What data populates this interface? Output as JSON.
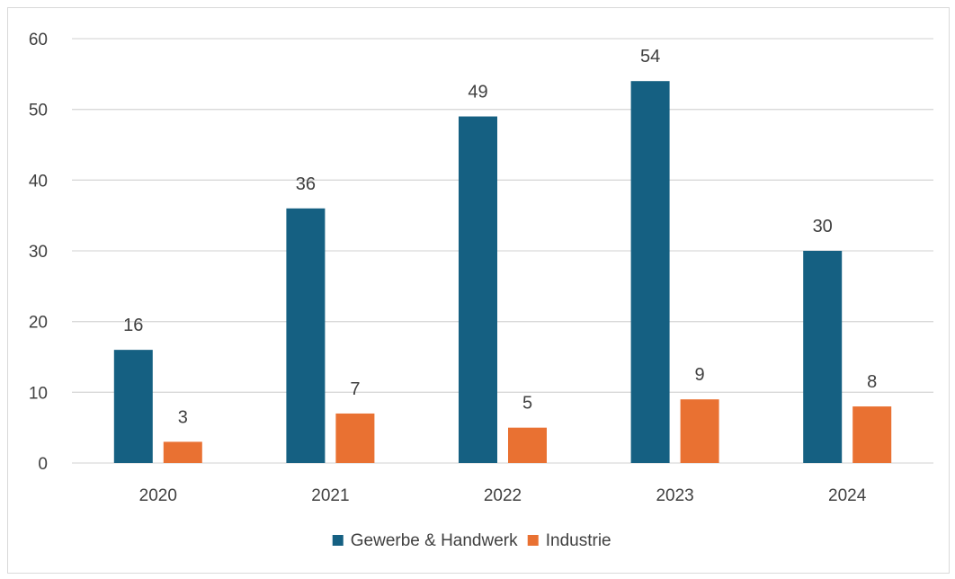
{
  "chart_data": {
    "type": "bar",
    "title": "",
    "xlabel": "",
    "ylabel": "",
    "categories": [
      "2020",
      "2021",
      "2022",
      "2023",
      "2024"
    ],
    "ylim": [
      0,
      60
    ],
    "yticks": [
      0,
      10,
      20,
      30,
      40,
      50,
      60
    ],
    "grid": true,
    "legend_position": "bottom",
    "series": [
      {
        "name": "Gewerbe & Handwerk",
        "color": "#156082",
        "values": [
          16,
          36,
          49,
          54,
          30
        ]
      },
      {
        "name": "Industrie",
        "color": "#E97132",
        "values": [
          3,
          7,
          5,
          9,
          8
        ]
      }
    ]
  }
}
